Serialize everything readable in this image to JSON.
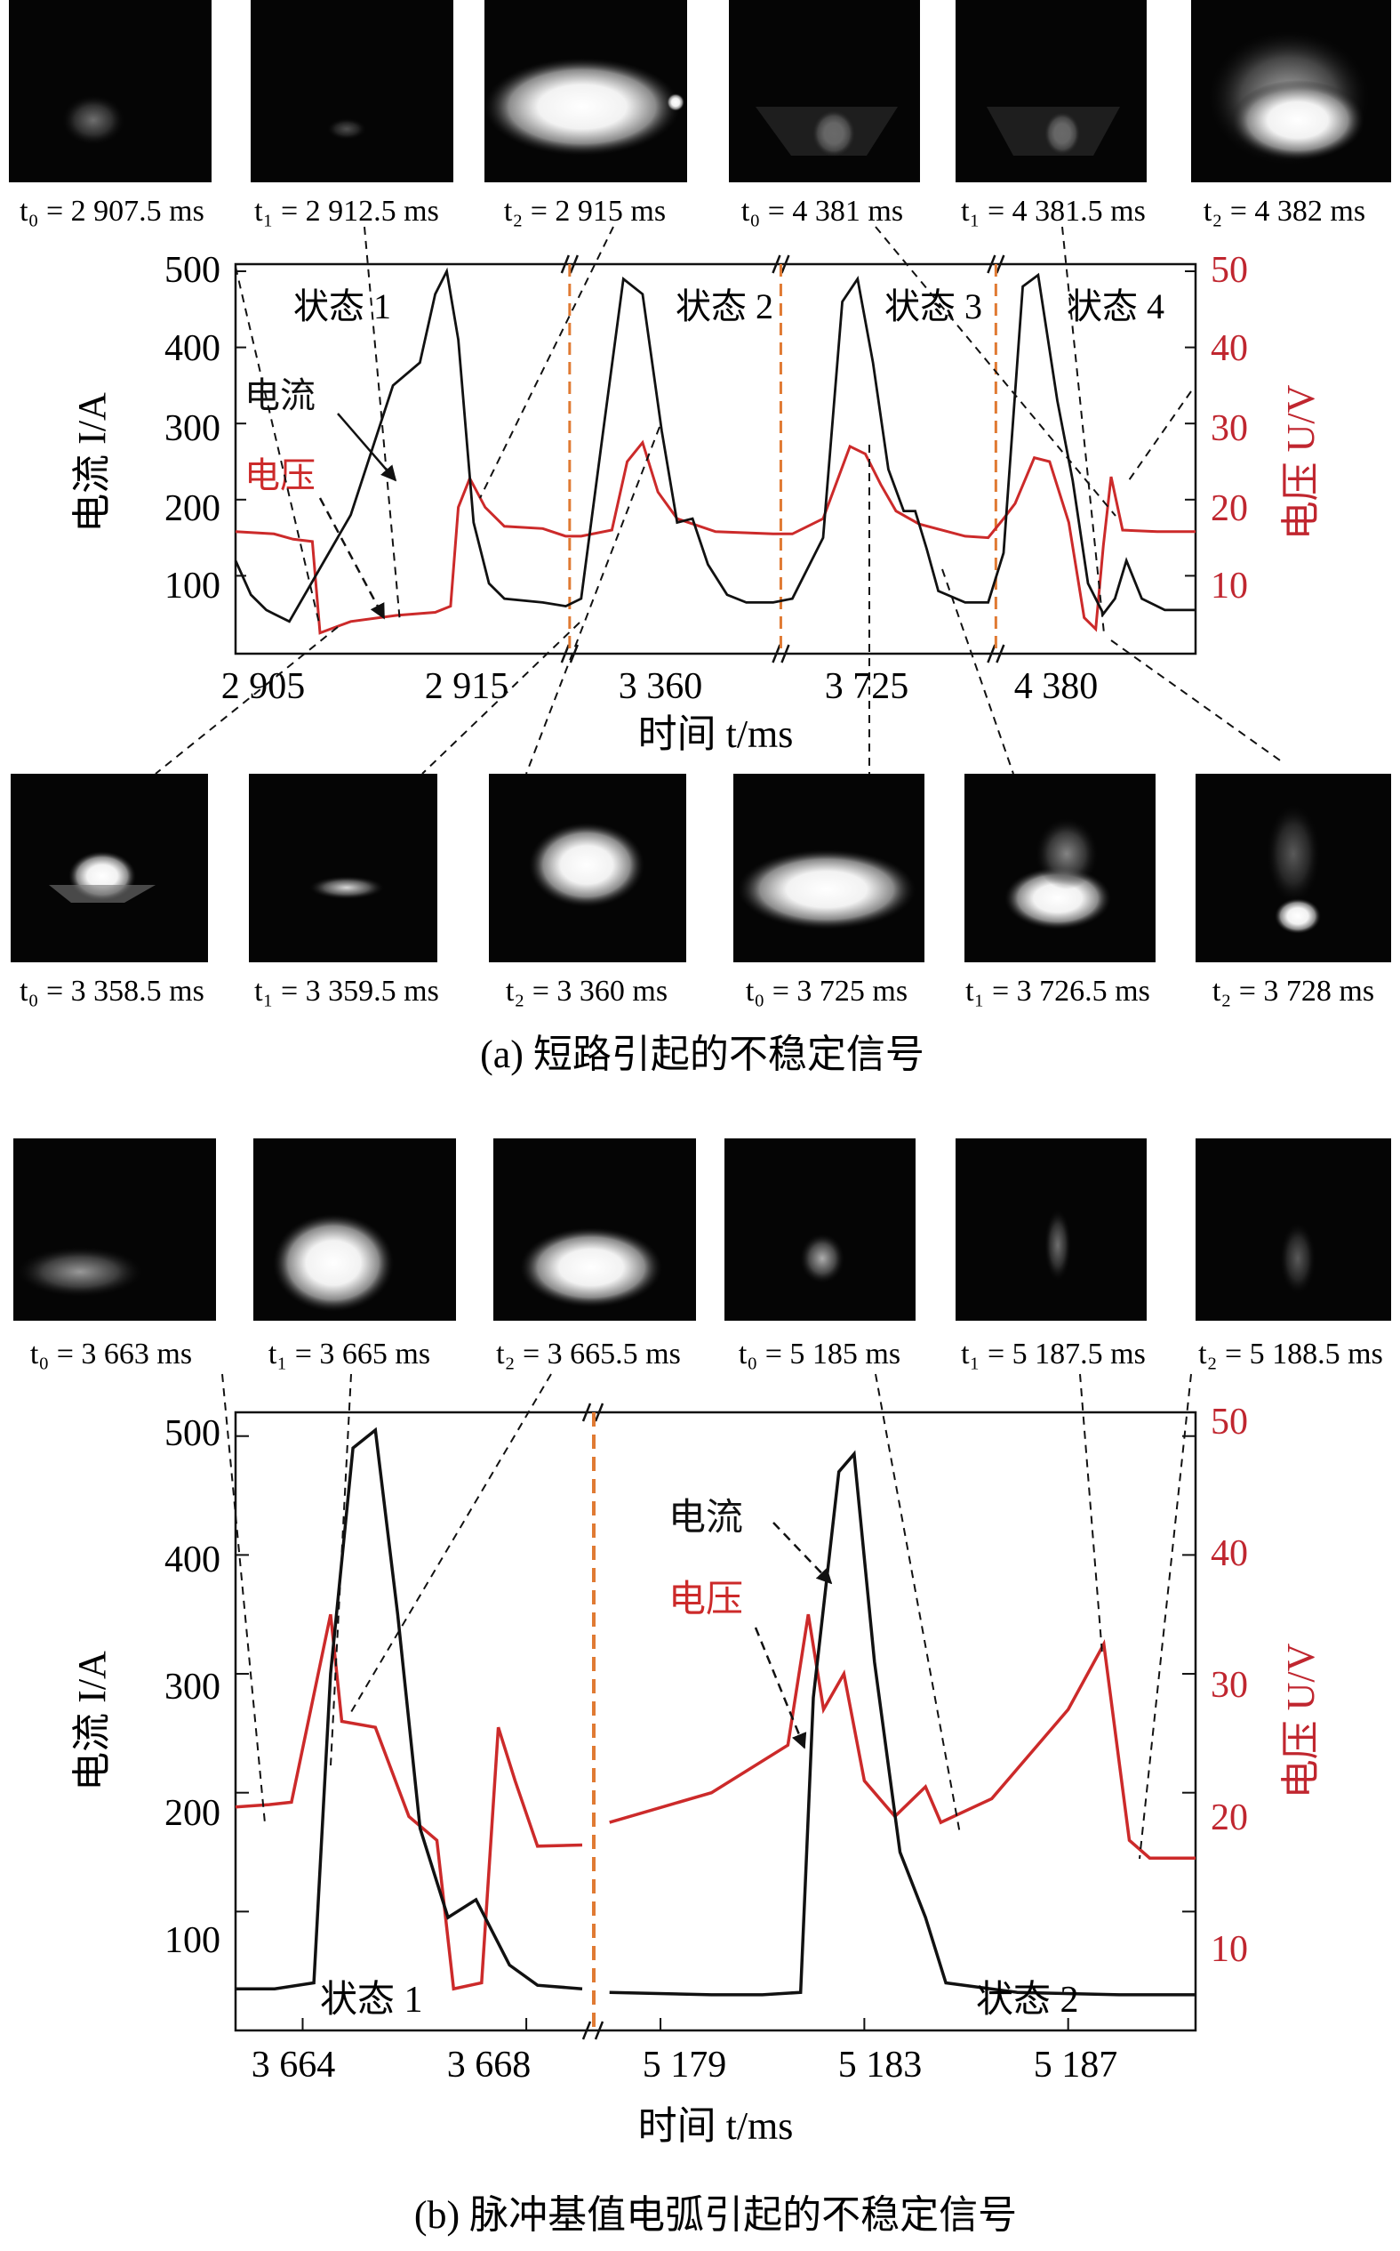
{
  "figure": {
    "caption_a": "(a) 短路引起的不稳定信号",
    "caption_b": "(b) 脉冲基值电弧引起的不稳定信号"
  },
  "colors": {
    "current": "#111111",
    "voltage": "#cc2a2a",
    "divider": "#e07a33",
    "axis_right": "#c0262f"
  },
  "chart_data": [
    {
      "type": "line",
      "panel": "a",
      "xlabel": "时间 t/ms",
      "ylabel_left": "电流 I/A",
      "ylabel_right": "电压 U/V",
      "ylim_left": [
        0,
        500
      ],
      "ylim_right": [
        0,
        50
      ],
      "left_ticks": [
        "100",
        "200",
        "300",
        "400",
        "500"
      ],
      "right_ticks": [
        "10",
        "20",
        "30",
        "40",
        "50"
      ],
      "x_tick_labels": [
        "2 905",
        "2 915",
        "3 360",
        "3 725",
        "4 380"
      ],
      "axis_breaks": 3,
      "segments": [
        {
          "label": "状态 1",
          "range_ms": [
            2905,
            2917
          ],
          "note": "short circuit"
        },
        {
          "label": "状态 2",
          "range_ms": [
            3358,
            3363
          ]
        },
        {
          "label": "状态 3",
          "range_ms": [
            3723,
            3729
          ]
        },
        {
          "label": "状态 4",
          "range_ms": [
            4379,
            4383
          ]
        }
      ],
      "series": [
        {
          "name": "电流",
          "unit": "A",
          "points": [
            [
              0,
              120
            ],
            [
              4,
              75
            ],
            [
              8,
              55
            ],
            [
              10,
              50
            ],
            [
              12,
              45
            ],
            [
              14,
              40
            ],
            [
              30,
              180
            ],
            [
              41,
              350
            ],
            [
              48,
              380
            ],
            [
              52,
              470
            ],
            [
              55,
              500
            ],
            [
              58,
              410
            ],
            [
              62,
              170
            ],
            [
              66,
              90
            ],
            [
              70,
              70
            ],
            [
              80,
              65
            ],
            [
              86,
              60
            ],
            [
              90,
              70
            ],
            [
              96,
              300
            ],
            [
              101,
              490
            ],
            [
              106,
              470
            ],
            [
              111,
              290
            ],
            [
              115,
              170
            ],
            [
              119,
              175
            ],
            [
              123,
              115
            ],
            [
              128,
              75
            ],
            [
              133,
              65
            ],
            [
              140,
              65
            ],
            [
              145,
              70
            ],
            [
              153,
              150
            ],
            [
              158,
              460
            ],
            [
              162,
              490
            ],
            [
              166,
              380
            ],
            [
              170,
              240
            ],
            [
              174,
              185
            ],
            [
              177,
              185
            ],
            [
              180,
              135
            ],
            [
              183,
              80
            ],
            [
              190,
              65
            ],
            [
              196,
              65
            ],
            [
              200,
              130
            ],
            [
              205,
              480
            ],
            [
              209,
              495
            ],
            [
              214,
              330
            ],
            [
              218,
              225
            ],
            [
              222,
              90
            ],
            [
              226,
              50
            ],
            [
              229,
              70
            ],
            [
              232,
              120
            ],
            [
              236,
              70
            ],
            [
              242,
              55
            ],
            [
              250,
              55
            ]
          ]
        },
        {
          "name": "电压",
          "unit": "V",
          "points": [
            [
              0,
              15.8
            ],
            [
              10,
              15.5
            ],
            [
              15,
              14.8
            ],
            [
              20,
              14.5
            ],
            [
              22,
              2.5
            ],
            [
              30,
              4.0
            ],
            [
              42,
              4.8
            ],
            [
              52,
              5.2
            ],
            [
              56,
              6.0
            ],
            [
              58,
              19.0
            ],
            [
              61,
              22.8
            ],
            [
              65,
              19.0
            ],
            [
              70,
              16.5
            ],
            [
              80,
              16.2
            ],
            [
              86,
              15.2
            ],
            [
              90,
              15.2
            ],
            [
              98,
              16.0
            ],
            [
              102,
              25.0
            ],
            [
              106,
              27.5
            ],
            [
              110,
              21.0
            ],
            [
              115,
              17.5
            ],
            [
              125,
              15.8
            ],
            [
              140,
              15.5
            ],
            [
              145,
              15.5
            ],
            [
              153,
              17.5
            ],
            [
              160,
              27.0
            ],
            [
              164,
              26.0
            ],
            [
              168,
              22.0
            ],
            [
              172,
              18.5
            ],
            [
              178,
              16.8
            ],
            [
              190,
              15.2
            ],
            [
              196,
              15.0
            ],
            [
              200,
              17.5
            ],
            [
              203,
              19.5
            ],
            [
              208,
              25.5
            ],
            [
              212,
              25.0
            ],
            [
              217,
              17.0
            ],
            [
              221,
              4.5
            ],
            [
              224,
              3.0
            ],
            [
              226,
              14.0
            ],
            [
              228,
              23.0
            ],
            [
              231,
              16.0
            ],
            [
              240,
              15.8
            ],
            [
              250,
              15.8
            ]
          ]
        }
      ]
    },
    {
      "type": "line",
      "panel": "b",
      "xlabel": "时间 t/ms",
      "ylabel_left": "电流 I/A",
      "ylabel_right": "电压 U/V",
      "ylim_left": [
        0,
        520
      ],
      "ylim_right": [
        0,
        52
      ],
      "left_ticks": [
        "100",
        "200",
        "300",
        "400",
        "500"
      ],
      "right_ticks": [
        "10",
        "20",
        "30",
        "40",
        "50"
      ],
      "x_tick_labels": [
        "3 664",
        "3 668",
        "5 179",
        "5 183",
        "5 187"
      ],
      "axis_breaks": 1,
      "segments": [
        {
          "label": "状态 1",
          "range_ms": [
            3663,
            3669
          ]
        },
        {
          "label": "状态 2",
          "range_ms": [
            5178,
            5189
          ]
        }
      ],
      "series": [
        {
          "name": "电流",
          "unit": "A",
          "points": [
            [
              3662.8,
              35
            ],
            [
              3663.5,
              35
            ],
            [
              3664.2,
              40
            ],
            [
              3664.5,
              300
            ],
            [
              3664.9,
              490
            ],
            [
              3665.3,
              505
            ],
            [
              3665.7,
              350
            ],
            [
              3666.1,
              170
            ],
            [
              3666.6,
              95
            ],
            [
              3667.1,
              110
            ],
            [
              3667.7,
              55
            ],
            [
              3668.2,
              38
            ],
            [
              3669,
              35
            ],
            [
              5178,
              32
            ],
            [
              5180,
              30
            ],
            [
              5181,
              30
            ],
            [
              5181.75,
              32
            ],
            [
              5182.0,
              280
            ],
            [
              5182.5,
              470
            ],
            [
              5182.8,
              485
            ],
            [
              5183.2,
              310
            ],
            [
              5183.7,
              150
            ],
            [
              5184.2,
              95
            ],
            [
              5184.6,
              40
            ],
            [
              5186,
              32
            ],
            [
              5188,
              30
            ],
            [
              5189.5,
              30
            ]
          ]
        },
        {
          "name": "电压",
          "unit": "V",
          "points": [
            [
              3662.8,
              18.8
            ],
            [
              3663.4,
              19.0
            ],
            [
              3663.8,
              19.2
            ],
            [
              3664.5,
              35.0
            ],
            [
              3664.7,
              26.0
            ],
            [
              3665.3,
              25.5
            ],
            [
              3665.9,
              18.0
            ],
            [
              3666.4,
              16.0
            ],
            [
              3666.7,
              3.5
            ],
            [
              3667.2,
              4.0
            ],
            [
              3667.5,
              25.5
            ],
            [
              3667.8,
              21.0
            ],
            [
              3668.2,
              15.5
            ],
            [
              3669,
              15.6
            ],
            [
              5178,
              17.5
            ],
            [
              5180,
              20.0
            ],
            [
              5181.5,
              24.0
            ],
            [
              5181.9,
              35.0
            ],
            [
              5182.2,
              27.0
            ],
            [
              5182.6,
              30.0
            ],
            [
              5183.0,
              21.0
            ],
            [
              5183.6,
              18.0
            ],
            [
              5184.2,
              20.5
            ],
            [
              5184.5,
              17.5
            ],
            [
              5185.5,
              19.5
            ],
            [
              5187.0,
              27.0
            ],
            [
              5187.7,
              32.5
            ],
            [
              5188.2,
              16.0
            ],
            [
              5188.6,
              14.5
            ],
            [
              5189.5,
              14.5
            ]
          ]
        }
      ]
    }
  ],
  "panel_a": {
    "top_images": [
      {
        "label": "t₀ = 2 907.5 ms"
      },
      {
        "label": "t₁ = 2 912.5 ms"
      },
      {
        "label": "t₂ = 2 915 ms"
      },
      {
        "label": "t₀ = 4 381 ms"
      },
      {
        "label": "t₁ = 4 381.5 ms"
      },
      {
        "label": "t₂ = 4 382 ms"
      }
    ],
    "bottom_images": [
      {
        "label": "t₀ = 3 358.5 ms"
      },
      {
        "label": "t₁ = 3 359.5 ms"
      },
      {
        "label": "t₂ = 3 360 ms"
      },
      {
        "label": "t₀ = 3 725 ms"
      },
      {
        "label": "t₁ = 3 726.5 ms"
      },
      {
        "label": "t₂ = 3 728 ms"
      }
    ],
    "legend": {
      "current": "电流",
      "voltage": "电压"
    }
  },
  "panel_b": {
    "top_images": [
      {
        "label": "t₀ = 3 663 ms"
      },
      {
        "label": "t₁ = 3 665 ms"
      },
      {
        "label": "t₂ = 3 665.5 ms"
      },
      {
        "label": "t₀ = 5 185 ms"
      },
      {
        "label": "t₁ = 5 187.5 ms"
      },
      {
        "label": "t₂ = 5 188.5 ms"
      }
    ],
    "legend": {
      "current": "电流",
      "voltage": "电压"
    }
  }
}
